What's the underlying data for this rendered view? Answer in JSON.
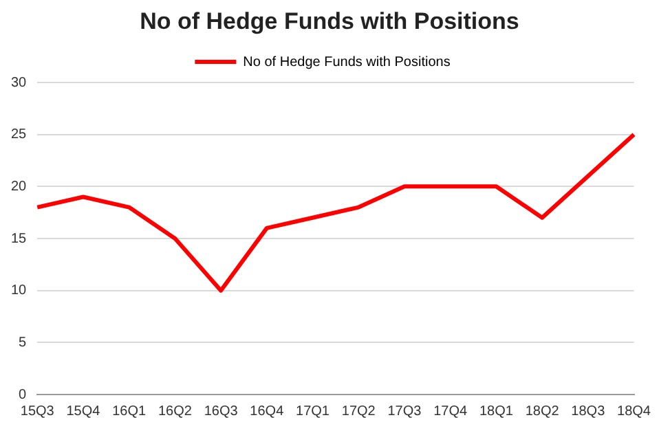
{
  "chart_data": {
    "type": "line",
    "title": "No of Hedge Funds with Positions",
    "categories": [
      "15Q3",
      "15Q4",
      "16Q1",
      "16Q2",
      "16Q3",
      "16Q4",
      "17Q1",
      "17Q2",
      "17Q3",
      "17Q4",
      "18Q1",
      "18Q2",
      "18Q3",
      "18Q4"
    ],
    "series": [
      {
        "name": "No of Hedge Funds with Positions",
        "color": "#ff0000",
        "values": [
          18,
          19,
          18,
          15,
          10,
          16,
          17,
          18,
          20,
          20,
          20,
          17,
          21,
          25
        ]
      }
    ],
    "ylim": [
      0,
      30
    ],
    "yticks": [
      0,
      5,
      10,
      15,
      20,
      25,
      30
    ],
    "grid": "y",
    "legend": "top",
    "marker": "none",
    "line_style": "solid"
  }
}
